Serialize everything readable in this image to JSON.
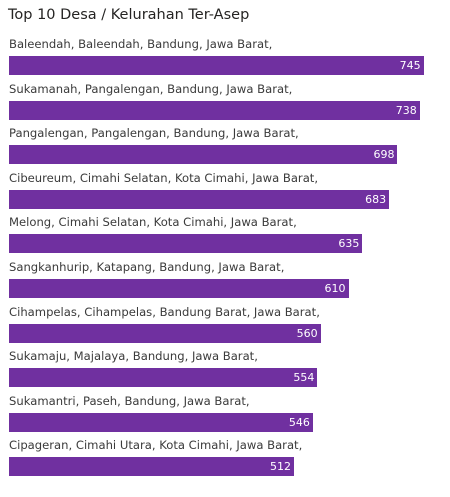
{
  "chart_data": {
    "type": "bar",
    "orientation": "horizontal",
    "title": "Top 10 Desa / Kelurahan Ter-Asep",
    "categories": [
      "Baleendah, Baleendah, Bandung, Jawa Barat,",
      "Sukamanah, Pangalengan, Bandung, Jawa Barat,",
      "Pangalengan, Pangalengan, Bandung, Jawa Barat,",
      "Cibeureum, Cimahi Selatan, Kota Cimahi, Jawa Barat,",
      "Melong, Cimahi Selatan, Kota Cimahi, Jawa Barat,",
      "Sangkanhurip, Katapang, Bandung, Jawa Barat,",
      "Cihampelas, Cihampelas, Bandung Barat, Jawa Barat,",
      "Sukamaju, Majalaya, Bandung, Jawa Barat,",
      "Sukamantri, Paseh, Bandung, Jawa Barat,",
      "Cipageran, Cimahi Utara, Kota Cimahi, Jawa Barat,"
    ],
    "values": [
      745,
      738,
      698,
      683,
      635,
      610,
      560,
      554,
      546,
      512
    ],
    "xlim": [
      0,
      760
    ],
    "bar_color": "#7030a0",
    "data_labels": true,
    "grid": false
  }
}
